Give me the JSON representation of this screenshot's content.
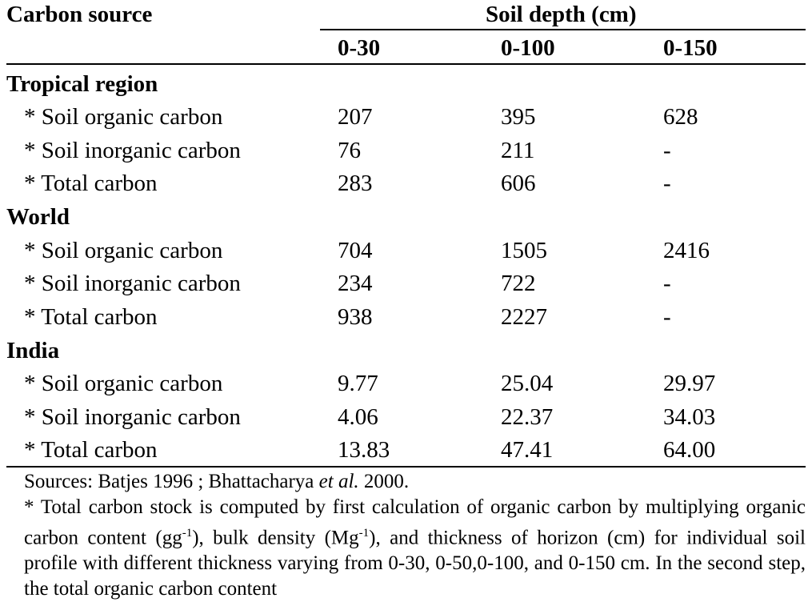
{
  "table": {
    "header": {
      "carbon_source": "Carbon source",
      "soil_depth": "Soil depth (cm)",
      "columns": [
        "0-30",
        "0-100",
        "0-150"
      ]
    },
    "sections": [
      {
        "title": "Tropical region",
        "rows": [
          {
            "label": "* Soil organic carbon",
            "values": [
              "207",
              "395",
              "628"
            ]
          },
          {
            "label": "* Soil inorganic carbon",
            "values": [
              "76",
              "211",
              "-"
            ]
          },
          {
            "label": "* Total carbon",
            "values": [
              "283",
              "606",
              "-"
            ]
          }
        ]
      },
      {
        "title": "World",
        "rows": [
          {
            "label": "* Soil organic carbon",
            "values": [
              "704",
              "1505",
              "2416"
            ]
          },
          {
            "label": "* Soil inorganic carbon",
            "values": [
              "234",
              "722",
              "-"
            ]
          },
          {
            "label": "* Total carbon",
            "values": [
              "938",
              "2227",
              "-"
            ]
          }
        ]
      },
      {
        "title": "India",
        "rows": [
          {
            "label": "* Soil organic carbon",
            "values": [
              "9.77",
              "25.04",
              "29.97"
            ]
          },
          {
            "label": "* Soil inorganic carbon",
            "values": [
              "4.06",
              "22.37",
              "34.03"
            ]
          },
          {
            "label": "* Total carbon",
            "values": [
              "13.83",
              "47.41",
              "64.00"
            ]
          }
        ]
      }
    ]
  },
  "notes": {
    "sources_prefix": "Sources: Batjes 1996 ; Bhattacharya ",
    "sources_italic": "et al.",
    "sources_suffix": " 2000.",
    "footnote_part1": "* Total carbon stock is computed by first calculation of organic carbon by multiplying organic carbon content (gg",
    "sup1": "-1",
    "footnote_part2": "), bulk density (Mg",
    "sup2": "-1",
    "footnote_part3": "), and thickness of horizon (cm) for individual soil profile with different thickness varying from 0-30, 0-50,0-100, and 0-150 cm. In the second step, the total organic carbon content"
  }
}
